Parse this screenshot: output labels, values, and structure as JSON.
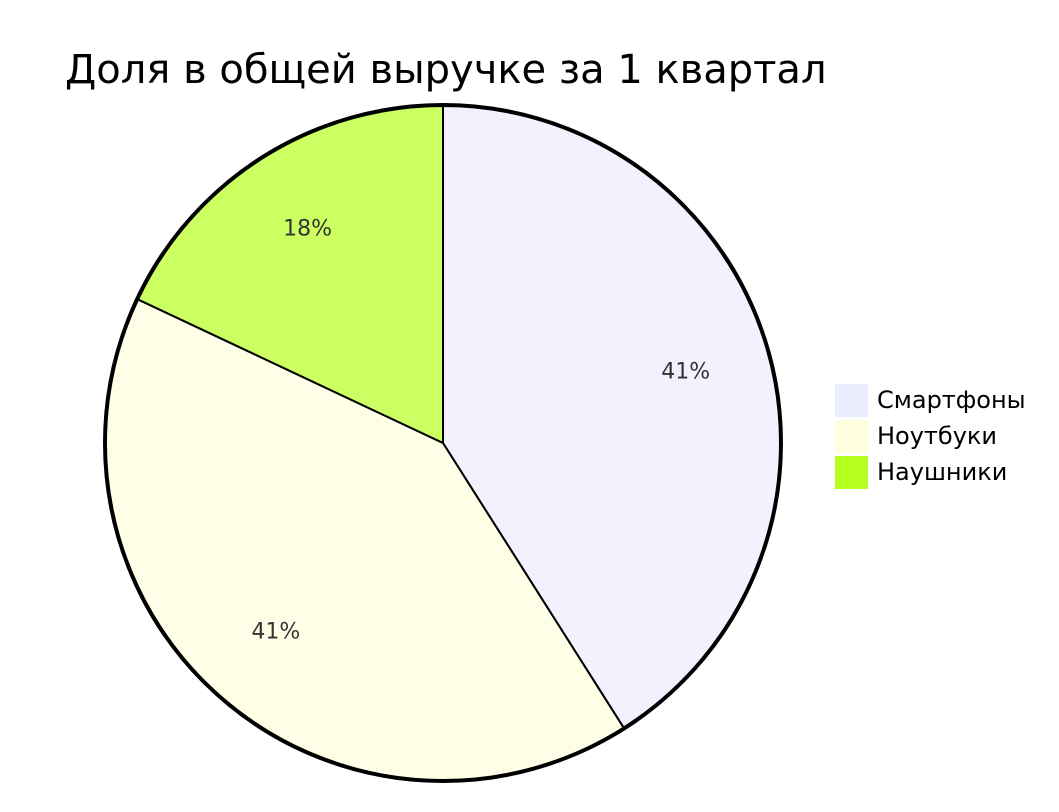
{
  "chart_data": {
    "type": "pie",
    "title": "Доля в общей выручке за 1 квартал",
    "categories": [
      "Смартфоны",
      "Ноутбуки",
      "Наушники"
    ],
    "values": [
      41,
      41,
      18
    ],
    "value_labels": [
      "41%",
      "41%",
      "18%"
    ],
    "colors": [
      "#ececff",
      "#ffffde",
      "#b5ff20"
    ]
  }
}
